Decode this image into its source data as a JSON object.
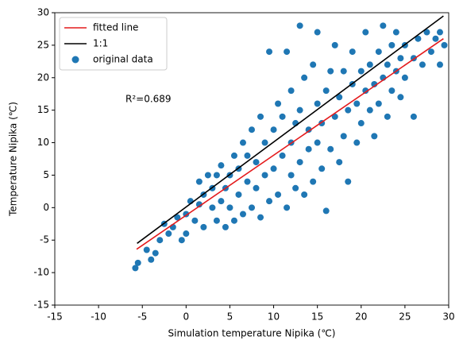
{
  "chart_data": {
    "type": "scatter",
    "xlabel": "Simulation temperature Nipika (℃)",
    "ylabel": "Temperature Nipika (℃)",
    "annotation": "R²=0.689",
    "xlim": [
      -15,
      30
    ],
    "xticks": [
      -15,
      -10,
      -5,
      0,
      5,
      10,
      15,
      20,
      25,
      30
    ],
    "ylim": [
      -15,
      30
    ],
    "yticks": [
      -15,
      -10,
      -5,
      0,
      5,
      10,
      15,
      20,
      25,
      30
    ],
    "legend": "upper left",
    "series": [
      {
        "name": "fitted line",
        "color": "#e41a1c",
        "style": "line",
        "x": [
          -5.65,
          29.4
        ],
        "y": [
          -6.4,
          26
        ]
      },
      {
        "name": "1:1",
        "color": "#000000",
        "style": "line",
        "x": [
          -5.6,
          29.4
        ],
        "y": [
          -5.5,
          29.5
        ]
      },
      {
        "name": "original data",
        "color": "#1f77b4",
        "style": "marker",
        "x": [
          -5.8,
          -5.5,
          -4.5,
          -4,
          -3.5,
          -3,
          -2.5,
          -2,
          -1.5,
          -1,
          -0.5,
          0,
          0,
          0.5,
          1,
          1.5,
          1.5,
          2,
          2,
          2.5,
          3,
          3,
          3.5,
          3.5,
          4,
          4,
          4.5,
          4.5,
          5,
          5,
          5.5,
          5.5,
          6,
          6,
          6.5,
          6.5,
          7,
          7,
          7.5,
          7.5,
          8,
          8,
          8.5,
          8.5,
          9,
          9,
          9.5,
          9.5,
          10,
          10,
          10.5,
          10.5,
          11,
          11,
          11.5,
          11.5,
          12,
          12,
          12,
          12.5,
          12.5,
          13,
          13,
          13,
          13.5,
          13.5,
          14,
          14,
          14.5,
          14.5,
          15,
          15,
          15,
          15.5,
          15.5,
          16,
          16,
          16.5,
          16.5,
          17,
          17,
          17.5,
          17.5,
          18,
          18,
          18.5,
          18.5,
          19,
          19,
          19.5,
          19.5,
          20,
          20,
          20.5,
          20.5,
          21,
          21,
          21.5,
          21.5,
          22,
          22,
          22.5,
          22.5,
          23,
          23,
          23.5,
          23.5,
          24,
          24,
          24.5,
          24.5,
          25,
          25,
          26,
          26,
          26.5,
          27,
          27.5,
          28,
          28.5,
          29,
          29.5,
          29
        ],
        "y": [
          -9.3,
          -8.5,
          -6.5,
          -8,
          -7,
          -5,
          -2.5,
          -4,
          -3,
          -1.5,
          -5,
          -4,
          -1,
          1,
          -2,
          0.5,
          4,
          -3,
          2,
          5,
          0,
          3,
          -2,
          5,
          1,
          6.5,
          -3,
          3,
          0,
          5,
          8,
          -2,
          2,
          6,
          10,
          -1,
          4,
          8,
          12,
          0,
          3,
          7,
          14,
          -1.5,
          5,
          10,
          24,
          1,
          6,
          12,
          16,
          2,
          8,
          14,
          24,
          0,
          5,
          10,
          18,
          3,
          13,
          28,
          7,
          15,
          2,
          20,
          9,
          12,
          22,
          4,
          10,
          16,
          27,
          6,
          13,
          18,
          -0.5,
          9,
          21,
          14,
          25,
          7,
          17,
          11,
          21,
          4,
          15,
          19,
          24,
          10,
          16,
          21,
          13,
          18,
          27,
          15,
          22,
          11,
          19,
          24,
          16,
          28,
          20,
          14,
          22,
          25,
          18,
          21,
          27,
          17,
          23,
          25,
          20,
          14,
          23,
          26,
          22,
          27,
          24,
          26,
          27,
          25,
          22
        ]
      }
    ]
  }
}
